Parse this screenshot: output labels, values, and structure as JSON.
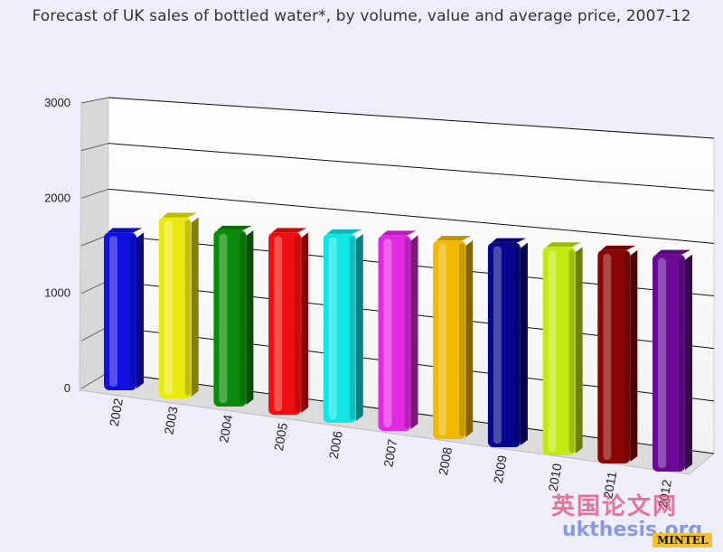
{
  "chart_data": {
    "type": "bar",
    "title": "Forecast of UK sales of bottled water*, by volume, value and average price, 2007-12",
    "categories": [
      "2002",
      "2003",
      "2004",
      "2005",
      "2006",
      "2007",
      "2008",
      "2009",
      "2010",
      "2011",
      "2012"
    ],
    "values": [
      1620,
      1860,
      1810,
      1870,
      1940,
      2010,
      2040,
      2100,
      2140,
      2190,
      2230
    ],
    "ylim": [
      0,
      3000
    ],
    "yticks": [
      "0",
      "1000",
      "2000",
      "3000"
    ],
    "xlabel": "",
    "ylabel": "",
    "grid": true,
    "legend": "none",
    "colors": [
      "#1010e0",
      "#eaea10",
      "#0a8c0a",
      "#ee1010",
      "#10e6e6",
      "#e22ae2",
      "#f0b800",
      "#06068c",
      "#c2ea10",
      "#8a0606",
      "#6a0a96"
    ]
  },
  "watermark": {
    "chinese": "英国论文网",
    "url": "ukthesis.org",
    "brand": "MINTEL"
  }
}
